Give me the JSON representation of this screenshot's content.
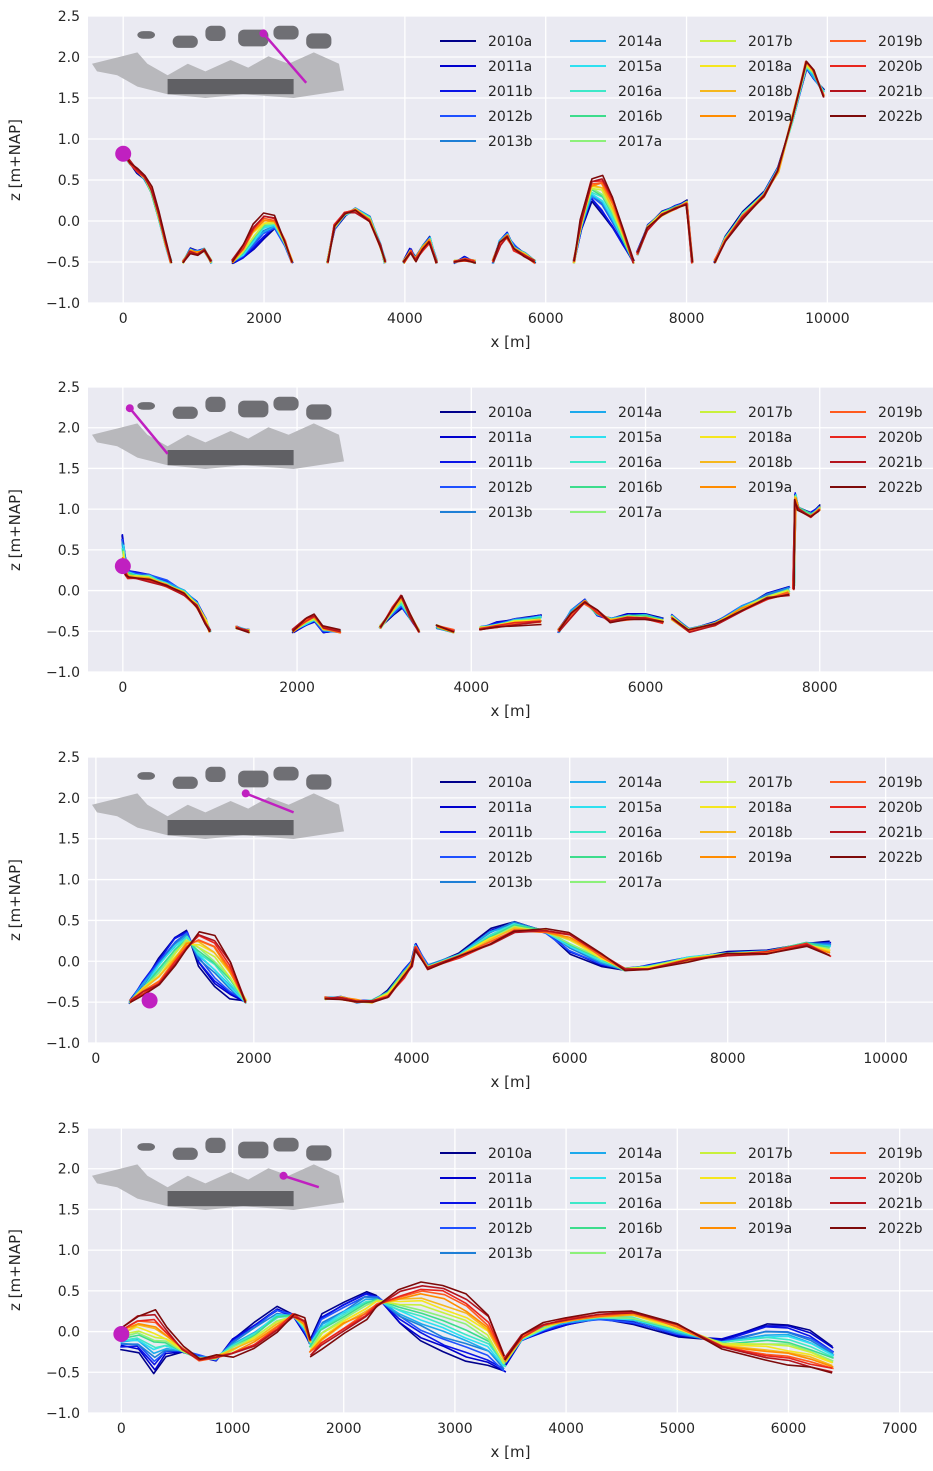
{
  "figure": {
    "series_names": [
      "2010a",
      "2011a",
      "2011b",
      "2012b",
      "2013b",
      "2014a",
      "2015a",
      "2016a",
      "2016b",
      "2017a",
      "2017b",
      "2018a",
      "2018b",
      "2019a",
      "2019b",
      "2020b",
      "2021b",
      "2022b"
    ],
    "series_colors": [
      "#00008b",
      "#0000cd",
      "#0a14e6",
      "#1e50ff",
      "#1e7fd6",
      "#1ca9ec",
      "#2ee0f0",
      "#3de8c8",
      "#3ddc8c",
      "#8cf07a",
      "#c8f03c",
      "#f5e61e",
      "#f5b71e",
      "#ff8c00",
      "#ff5a1e",
      "#e8261e",
      "#b4141e",
      "#7d0a0a"
    ]
  },
  "chart_data": [
    {
      "type": "line",
      "xlabel": "x [m]",
      "ylabel": "z [m+NAP]",
      "xlim": [
        -500,
        11500
      ],
      "ylim": [
        -1.0,
        2.5
      ],
      "xticks": [
        0,
        2000,
        4000,
        6000,
        8000,
        10000
      ],
      "xtick_labels": [
        "0",
        "2000",
        "4000",
        "6000",
        "8000",
        "10000"
      ],
      "yticks": [
        -1.0,
        -0.5,
        0.0,
        0.5,
        1.0,
        1.5,
        2.0,
        2.5
      ],
      "ytick_labels": [
        "−1.0",
        "−0.5",
        "0.0",
        "0.5",
        "1.0",
        "1.5",
        "2.0",
        "2.5"
      ],
      "marker": {
        "x": 0,
        "y": 0.82,
        "color": "#c020c0"
      },
      "inset_line": [
        [
          0.68,
          0.15
        ],
        [
          0.85,
          0.8
        ]
      ],
      "grid": true,
      "legend_position": "top-right",
      "segments": [
        {
          "x": [
            0,
            100,
            200,
            300,
            400,
            500,
            600,
            680
          ],
          "early": [
            0.82,
            0.7,
            0.6,
            0.52,
            0.35,
            0.05,
            -0.3,
            -0.5
          ],
          "late": [
            0.82,
            0.72,
            0.62,
            0.55,
            0.4,
            0.1,
            -0.25,
            -0.5
          ]
        },
        {
          "x": [
            850,
            950,
            1050,
            1150,
            1250
          ],
          "early": [
            -0.5,
            -0.35,
            -0.38,
            -0.34,
            -0.5
          ],
          "late": [
            -0.5,
            -0.38,
            -0.4,
            -0.36,
            -0.5
          ]
        },
        {
          "x": [
            1550,
            1700,
            1850,
            2000,
            2150,
            2300,
            2400
          ],
          "early": [
            -0.5,
            -0.45,
            -0.35,
            -0.2,
            -0.1,
            -0.3,
            -0.5
          ],
          "late": [
            -0.5,
            -0.3,
            -0.05,
            0.08,
            0.05,
            -0.25,
            -0.5
          ]
        },
        {
          "x": [
            2900,
            3000,
            3150,
            3300,
            3500,
            3650,
            3720
          ],
          "early": [
            -0.5,
            -0.1,
            0.08,
            0.15,
            0.05,
            -0.3,
            -0.5
          ],
          "late": [
            -0.5,
            -0.05,
            0.1,
            0.12,
            0.0,
            -0.3,
            -0.5
          ]
        },
        {
          "x": [
            3980,
            4080,
            4150,
            4250,
            4350,
            4450
          ],
          "early": [
            -0.5,
            -0.35,
            -0.45,
            -0.3,
            -0.2,
            -0.5
          ],
          "late": [
            -0.5,
            -0.38,
            -0.48,
            -0.35,
            -0.25,
            -0.5
          ]
        },
        {
          "x": [
            4700,
            4850,
            5000
          ],
          "early": [
            -0.5,
            -0.45,
            -0.5
          ],
          "late": [
            -0.5,
            -0.48,
            -0.5
          ]
        },
        {
          "x": [
            5250,
            5350,
            5450,
            5550,
            5700,
            5850
          ],
          "early": [
            -0.5,
            -0.25,
            -0.15,
            -0.3,
            -0.4,
            -0.5
          ],
          "late": [
            -0.5,
            -0.28,
            -0.2,
            -0.35,
            -0.42,
            -0.5
          ]
        },
        {
          "x": [
            6400,
            6500,
            6650,
            6800,
            6950,
            7100,
            7250
          ],
          "early": [
            -0.5,
            -0.1,
            0.25,
            0.1,
            -0.1,
            -0.3,
            -0.5
          ],
          "late": [
            -0.5,
            0.0,
            0.5,
            0.55,
            0.3,
            -0.1,
            -0.5
          ]
        },
        {
          "x": [
            7300,
            7450,
            7650,
            7850,
            8000,
            8080
          ],
          "early": [
            -0.4,
            -0.05,
            0.1,
            0.18,
            0.25,
            -0.5
          ],
          "late": [
            -0.4,
            -0.1,
            0.08,
            0.15,
            0.2,
            -0.5
          ]
        },
        {
          "x": [
            8400,
            8550,
            8800,
            9100,
            9300,
            9500,
            9700,
            9800,
            9950
          ],
          "early": [
            -0.5,
            -0.2,
            0.1,
            0.35,
            0.65,
            1.2,
            1.85,
            1.75,
            1.6
          ],
          "late": [
            -0.5,
            -0.25,
            0.05,
            0.3,
            0.6,
            1.25,
            1.95,
            1.85,
            1.5
          ]
        }
      ]
    },
    {
      "type": "line",
      "xlabel": "x [m]",
      "ylabel": "z [m+NAP]",
      "xlim": [
        -400,
        9300
      ],
      "ylim": [
        -1.0,
        2.5
      ],
      "xticks": [
        0,
        2000,
        4000,
        6000,
        8000
      ],
      "xtick_labels": [
        "0",
        "2000",
        "4000",
        "6000",
        "8000"
      ],
      "yticks": [
        -1.0,
        -0.5,
        0.0,
        0.5,
        1.0,
        1.5,
        2.0,
        2.5
      ],
      "ytick_labels": [
        "−1.0",
        "−0.5",
        "0.0",
        "0.5",
        "1.0",
        "1.5",
        "2.0",
        "2.5"
      ],
      "marker": {
        "x": 0,
        "y": 0.3,
        "color": "#c020c0"
      },
      "inset_line": [
        [
          0.15,
          0.2
        ],
        [
          0.3,
          0.8
        ]
      ],
      "grid": true,
      "legend_position": "top-right",
      "segments": [
        {
          "x": [
            0,
            30,
            60,
            150,
            300,
            500,
            700,
            850,
            950,
            1000
          ],
          "early": [
            0.7,
            0.35,
            0.25,
            0.22,
            0.2,
            0.12,
            0.0,
            -0.15,
            -0.35,
            -0.5
          ],
          "late": [
            0.3,
            0.2,
            0.15,
            0.15,
            0.12,
            0.05,
            -0.05,
            -0.2,
            -0.4,
            -0.5
          ]
        },
        {
          "x": [
            1300,
            1450
          ],
          "early": [
            -0.45,
            -0.5
          ],
          "late": [
            -0.45,
            -0.5
          ]
        },
        {
          "x": [
            1950,
            2100,
            2200,
            2300,
            2500
          ],
          "early": [
            -0.5,
            -0.42,
            -0.38,
            -0.5,
            -0.5
          ],
          "late": [
            -0.5,
            -0.35,
            -0.3,
            -0.45,
            -0.5
          ]
        },
        {
          "x": [
            2950,
            3100,
            3200,
            3300,
            3400
          ],
          "early": [
            -0.45,
            -0.3,
            -0.2,
            -0.35,
            -0.5
          ],
          "late": [
            -0.45,
            -0.2,
            -0.05,
            -0.3,
            -0.5
          ]
        },
        {
          "x": [
            3600,
            3800
          ],
          "early": [
            -0.45,
            -0.5
          ],
          "late": [
            -0.42,
            -0.5
          ]
        },
        {
          "x": [
            4100,
            4300,
            4500,
            4800
          ],
          "early": [
            -0.45,
            -0.4,
            -0.35,
            -0.3
          ],
          "late": [
            -0.48,
            -0.45,
            -0.42,
            -0.4
          ]
        },
        {
          "x": [
            5000,
            5150,
            5300,
            5450,
            5600,
            5800,
            6000,
            6200
          ],
          "early": [
            -0.5,
            -0.25,
            -0.12,
            -0.3,
            -0.35,
            -0.3,
            -0.3,
            -0.35
          ],
          "late": [
            -0.5,
            -0.3,
            -0.15,
            -0.25,
            -0.38,
            -0.35,
            -0.35,
            -0.4
          ]
        },
        {
          "x": [
            6300,
            6500,
            6800,
            7100,
            7400,
            7650
          ],
          "early": [
            -0.3,
            -0.48,
            -0.4,
            -0.2,
            -0.05,
            0.05
          ],
          "late": [
            -0.35,
            -0.5,
            -0.42,
            -0.25,
            -0.1,
            -0.05
          ]
        },
        {
          "x": [
            7700,
            7720,
            7750,
            7900,
            8000
          ],
          "early": [
            0.1,
            1.2,
            1.0,
            0.95,
            1.05
          ],
          "late": [
            0.0,
            1.1,
            1.0,
            0.9,
            0.98
          ]
        }
      ]
    },
    {
      "type": "line",
      "xlabel": "x [m]",
      "ylabel": "z [m+NAP]",
      "xlim": [
        -100,
        10600
      ],
      "ylim": [
        -1.0,
        2.5
      ],
      "xticks": [
        0,
        2000,
        4000,
        6000,
        8000,
        10000
      ],
      "xtick_labels": [
        "0",
        "2000",
        "4000",
        "6000",
        "8000",
        "10000"
      ],
      "yticks": [
        -1.0,
        -0.5,
        0.0,
        0.5,
        1.0,
        1.5,
        2.0,
        2.5
      ],
      "ytick_labels": [
        "−1.0",
        "−0.5",
        "0.0",
        "0.5",
        "1.0",
        "1.5",
        "2.0",
        "2.5"
      ],
      "marker": {
        "x": 680,
        "y": -0.48,
        "color": "#c020c0"
      },
      "inset_line": [
        [
          0.61,
          0.4
        ],
        [
          0.8,
          0.65
        ]
      ],
      "grid": true,
      "legend_position": "top-right",
      "segments": [
        {
          "x": [
            430,
            600,
            800,
            1000,
            1150,
            1300,
            1500,
            1700,
            1900
          ],
          "early": [
            -0.5,
            -0.25,
            0.05,
            0.3,
            0.38,
            -0.05,
            -0.3,
            -0.45,
            -0.5
          ],
          "late": [
            -0.5,
            -0.4,
            -0.3,
            -0.05,
            0.15,
            0.35,
            0.3,
            0.0,
            -0.5
          ]
        },
        {
          "x": [
            2900,
            3100,
            3300,
            3500,
            3700,
            3900,
            4000,
            4050,
            4200
          ],
          "early": [
            -0.45,
            -0.45,
            -0.5,
            -0.48,
            -0.35,
            -0.1,
            0.0,
            0.2,
            -0.05
          ],
          "late": [
            -0.45,
            -0.45,
            -0.48,
            -0.5,
            -0.45,
            -0.2,
            -0.05,
            0.15,
            -0.1
          ]
        },
        {
          "x": [
            4200,
            4600,
            5000,
            5300,
            5700,
            6000,
            6400,
            6700,
            7000,
            7500,
            8000,
            8500,
            9000,
            9300
          ],
          "early": [
            -0.05,
            0.1,
            0.4,
            0.5,
            0.35,
            0.1,
            -0.05,
            -0.1,
            -0.05,
            0.05,
            0.1,
            0.12,
            0.22,
            0.25
          ],
          "late": [
            -0.1,
            0.05,
            0.2,
            0.35,
            0.38,
            0.35,
            0.1,
            -0.1,
            -0.1,
            0.0,
            0.08,
            0.1,
            0.2,
            0.05
          ]
        }
      ]
    },
    {
      "type": "line",
      "xlabel": "x [m]",
      "ylabel": "z [m+NAP]",
      "xlim": [
        -300,
        7300
      ],
      "ylim": [
        -1.0,
        2.5
      ],
      "xticks": [
        0,
        1000,
        2000,
        3000,
        4000,
        5000,
        6000,
        7000
      ],
      "xtick_labels": [
        "0",
        "1000",
        "2000",
        "3000",
        "4000",
        "5000",
        "6000",
        "7000"
      ],
      "yticks": [
        -1.0,
        -0.5,
        0.0,
        0.5,
        1.0,
        1.5,
        2.0,
        2.5
      ],
      "ytick_labels": [
        "−1.0",
        "−0.5",
        "0.0",
        "0.5",
        "1.0",
        "1.5",
        "2.0",
        "2.5"
      ],
      "marker": {
        "x": 0,
        "y": -0.03,
        "color": "#c020c0"
      },
      "inset_line": [
        [
          0.76,
          0.55
        ],
        [
          0.9,
          0.7
        ]
      ],
      "grid": true,
      "legend_position": "top-right",
      "segments": [
        {
          "x": [
            0,
            150,
            300,
            400,
            550,
            700,
            850,
            1000,
            1200,
            1400,
            1550,
            1650,
            1700
          ],
          "early": [
            -0.2,
            -0.25,
            -0.5,
            -0.3,
            -0.25,
            -0.3,
            -0.35,
            -0.1,
            0.1,
            0.3,
            0.2,
            -0.05,
            -0.15
          ],
          "late": [
            0.05,
            0.2,
            0.25,
            0.05,
            -0.2,
            -0.35,
            -0.3,
            -0.3,
            -0.2,
            0.0,
            0.2,
            0.15,
            -0.1
          ]
        },
        {
          "x": [
            1700,
            1800,
            2000,
            2200,
            2300,
            2500,
            2700,
            2900,
            3100,
            3300,
            3450
          ],
          "early": [
            -0.1,
            0.2,
            0.35,
            0.5,
            0.45,
            0.1,
            -0.1,
            -0.25,
            -0.35,
            -0.4,
            -0.5
          ],
          "late": [
            -0.3,
            -0.2,
            0.0,
            0.15,
            0.3,
            0.5,
            0.62,
            0.58,
            0.45,
            0.2,
            -0.3
          ]
        },
        {
          "x": [
            3450,
            3600,
            3800,
            4000,
            4300,
            4600,
            5000,
            5400,
            5800,
            6000,
            6200,
            6400
          ],
          "early": [
            -0.4,
            -0.1,
            0.0,
            0.1,
            0.15,
            0.1,
            -0.05,
            -0.1,
            0.1,
            0.1,
            0.0,
            -0.2
          ],
          "late": [
            -0.35,
            -0.05,
            0.1,
            0.15,
            0.22,
            0.25,
            0.1,
            -0.2,
            -0.35,
            -0.4,
            -0.45,
            -0.5
          ]
        }
      ]
    }
  ]
}
